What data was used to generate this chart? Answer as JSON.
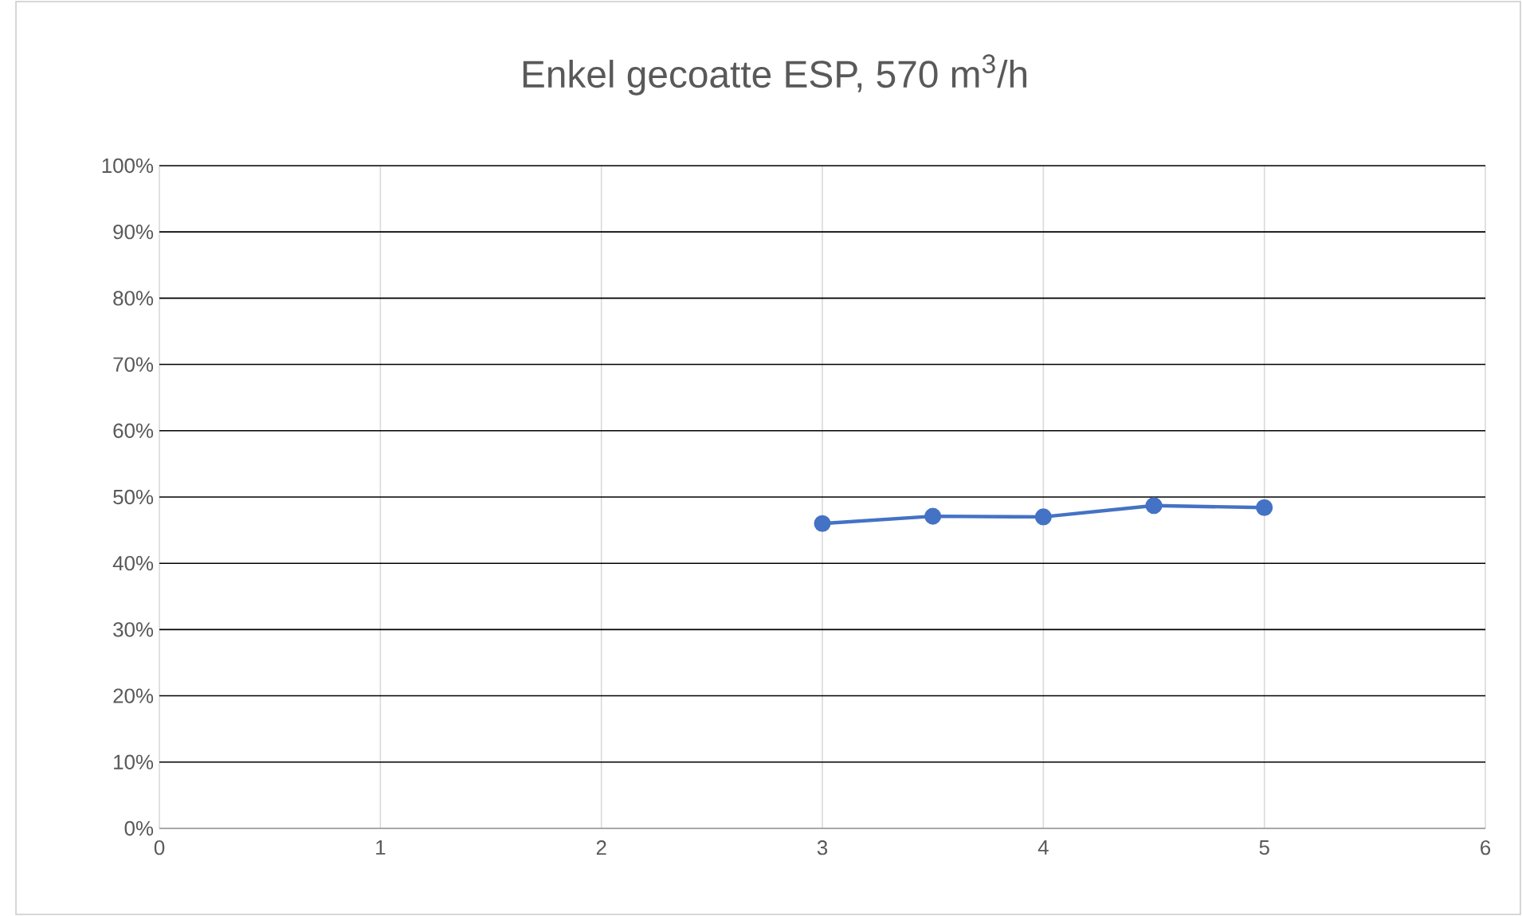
{
  "chart_data": {
    "type": "line",
    "title": "Enkel gecoatte ESP, 570 m$^{3}$/h",
    "x": [
      3,
      3.5,
      4,
      4.5,
      5
    ],
    "series": [
      {
        "color": "#4472c4",
        "values": [
          46.0,
          47.1,
          47.0,
          48.7,
          48.4
        ]
      }
    ],
    "xlim": [
      0,
      6
    ],
    "xticks": [
      0,
      1,
      2,
      3,
      4,
      5,
      6
    ],
    "ylim": [
      0,
      100
    ],
    "yticks": [
      {
        "value": 0,
        "label": "0%"
      },
      {
        "value": 10,
        "label": "10%"
      },
      {
        "value": 20,
        "label": "20%"
      },
      {
        "value": 30,
        "label": "30%"
      },
      {
        "value": 40,
        "label": "40%"
      },
      {
        "value": 50,
        "label": "50%"
      },
      {
        "value": 60,
        "label": "60%"
      },
      {
        "value": 70,
        "label": "70%"
      },
      {
        "value": 80,
        "label": "80%"
      },
      {
        "value": 90,
        "label": "90%"
      },
      {
        "value": 100,
        "label": "100%"
      }
    ],
    "grid": true,
    "marker": "circle",
    "line_style": "solid"
  }
}
